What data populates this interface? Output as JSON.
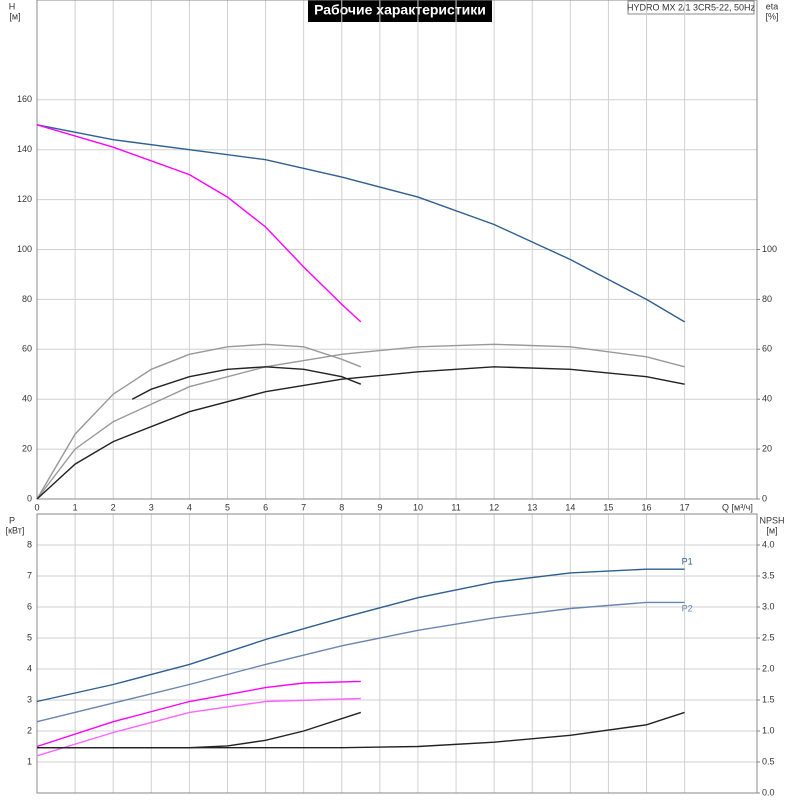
{
  "header": {
    "title": "Рабочие характеристики",
    "model": "HYDRO MX 2/1 3CR5-22, 50Hz"
  },
  "chart_data": [
    {
      "type": "line",
      "ylabel": "H",
      "yunit": "[м]",
      "y2label": "eta",
      "y2unit": "[%]",
      "xlabel": "Q [м³/ч]",
      "xlim": [
        0,
        18.9
      ],
      "xticks": [
        0,
        1,
        2,
        3,
        4,
        5,
        6,
        7,
        8,
        9,
        10,
        11,
        12,
        13,
        14,
        15,
        16,
        17
      ],
      "ylim": [
        0,
        200
      ],
      "yticks": [
        0,
        20,
        40,
        60,
        80,
        100,
        120,
        140,
        160
      ],
      "y2lim": [
        0,
        200
      ],
      "y2ticks": [
        0,
        20,
        40,
        60,
        80,
        100
      ],
      "series": [
        {
          "color": "#2e5f8f",
          "axis": "y",
          "x": [
            0,
            2,
            4,
            6,
            8,
            10,
            12,
            14,
            16,
            17
          ],
          "values": [
            150,
            144,
            140,
            136,
            129,
            121,
            110,
            96,
            80,
            71
          ]
        },
        {
          "color": "#ff00ff",
          "axis": "y",
          "x": [
            0,
            2,
            4,
            5,
            6,
            7,
            8,
            8.5
          ],
          "values": [
            150,
            141,
            130,
            121,
            109,
            93,
            78,
            71
          ]
        },
        {
          "color": "#999999",
          "axis": "y2",
          "x": [
            0,
            1,
            2,
            3,
            4,
            5,
            6,
            7,
            8,
            8.5
          ],
          "values": [
            0,
            26,
            42,
            52,
            58,
            61,
            62,
            61,
            56,
            53
          ]
        },
        {
          "color": "#999999",
          "axis": "y2",
          "x": [
            0,
            1,
            2,
            4,
            6,
            8,
            10,
            12,
            14,
            16,
            17
          ],
          "values": [
            0,
            20,
            31,
            45,
            53,
            58,
            61,
            62,
            61,
            57,
            53
          ]
        },
        {
          "color": "#222222",
          "axis": "y2",
          "x": [
            2.5,
            3,
            4,
            5,
            6,
            7,
            8,
            8.5
          ],
          "values": [
            40,
            44,
            49,
            52,
            53,
            52,
            49,
            46
          ]
        },
        {
          "color": "#222222",
          "axis": "y2",
          "x": [
            0,
            1,
            2,
            4,
            6,
            8,
            10,
            12,
            14,
            16,
            17
          ],
          "values": [
            0,
            14,
            23,
            35,
            43,
            48,
            51,
            53,
            52,
            49,
            46
          ]
        }
      ]
    },
    {
      "type": "line",
      "ylabel": "P",
      "yunit": "[кВт]",
      "y2label": "NPSH",
      "y2unit": "[м]",
      "xlim": [
        0,
        18.9
      ],
      "ylim": [
        0,
        9
      ],
      "yticks": [
        1,
        2,
        3,
        4,
        5,
        6,
        7,
        8
      ],
      "y2lim": [
        0,
        4.5
      ],
      "y2ticks": [
        {
          "value": 0,
          "label": "0.0"
        },
        0.5,
        {
          "value": 1,
          "label": "1.0"
        },
        1.5,
        {
          "value": 2,
          "label": "2.0"
        },
        2.5,
        {
          "value": 3,
          "label": "3.0"
        },
        3.5,
        {
          "value": 4,
          "label": "4.0"
        }
      ],
      "series": [
        {
          "name": "P1",
          "color": "#2e5f8f",
          "axis": "y",
          "x": [
            0,
            2,
            4,
            6,
            8,
            10,
            12,
            14,
            16,
            17
          ],
          "values": [
            2.95,
            3.5,
            4.15,
            4.95,
            5.65,
            6.3,
            6.8,
            7.1,
            7.22,
            7.22
          ]
        },
        {
          "name": "P2",
          "color": "#6a86b0",
          "axis": "y",
          "x": [
            0,
            2,
            4,
            6,
            8,
            10,
            12,
            14,
            16,
            17
          ],
          "values": [
            2.3,
            2.9,
            3.5,
            4.15,
            4.75,
            5.25,
            5.65,
            5.95,
            6.15,
            6.15
          ]
        },
        {
          "color": "#ff00ff",
          "axis": "y",
          "x": [
            0,
            2,
            4,
            6,
            7,
            8.5
          ],
          "values": [
            1.5,
            2.3,
            2.95,
            3.4,
            3.55,
            3.6
          ]
        },
        {
          "color": "#ff66ff",
          "axis": "y",
          "x": [
            0,
            2,
            4,
            6,
            8.5
          ],
          "values": [
            1.2,
            1.95,
            2.6,
            2.95,
            3.05
          ]
        },
        {
          "color": "#222222",
          "axis": "y2",
          "x": [
            0,
            4,
            5,
            6,
            7,
            8.5
          ],
          "values": [
            0.73,
            0.73,
            0.76,
            0.85,
            1.0,
            1.3
          ]
        },
        {
          "color": "#222222",
          "axis": "y2",
          "x": [
            0,
            8,
            10,
            12,
            14,
            16,
            17
          ],
          "values": [
            0.73,
            0.73,
            0.75,
            0.82,
            0.93,
            1.1,
            1.3
          ]
        }
      ]
    }
  ]
}
